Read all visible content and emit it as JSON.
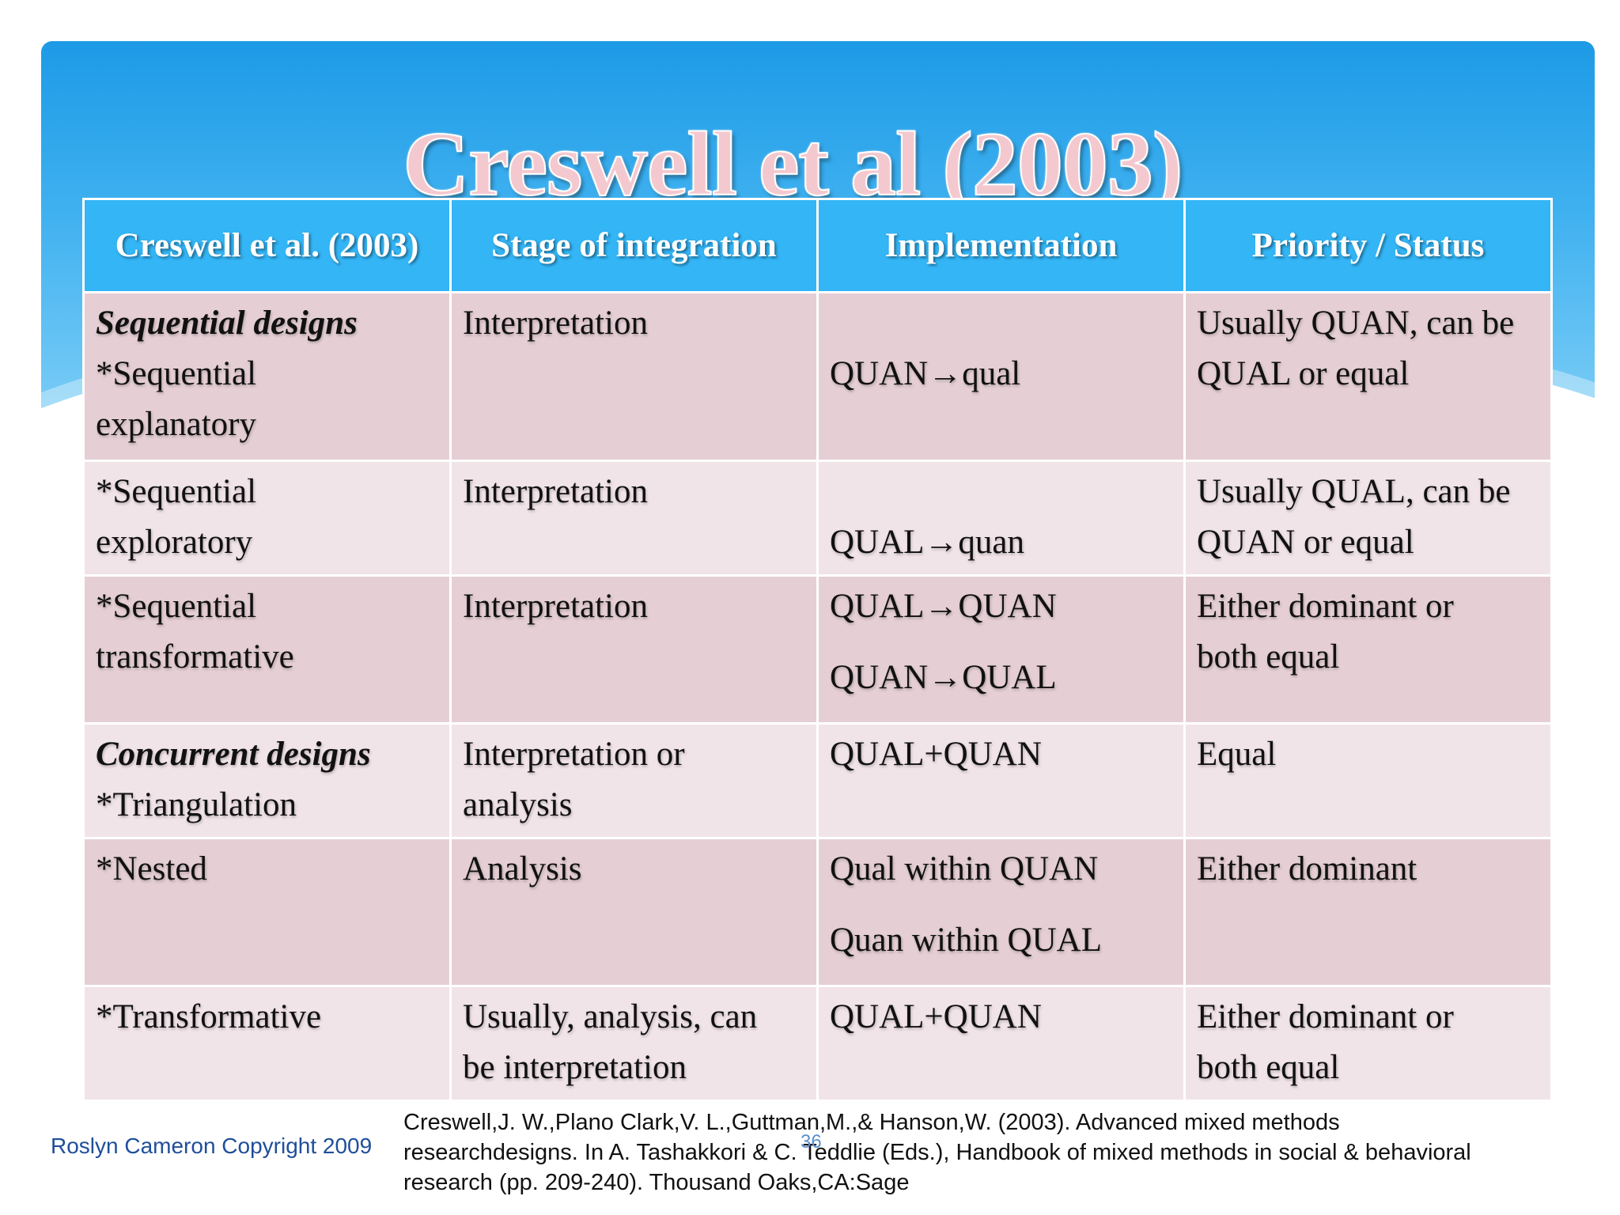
{
  "slide": {
    "title": "Creswell et al (2003)",
    "colors": {
      "banner": "#2aa7ee",
      "header_cell": "#33b5f6",
      "row_dark": "#e5cfd5",
      "row_light": "#f1e4e8",
      "title_fill": "#f3c9cf"
    }
  },
  "table": {
    "headers": [
      "Creswell et al. (2003)",
      "Stage of integration",
      "Implementation",
      "Priority / Status"
    ],
    "rows": [
      {
        "design_group": "Sequential designs",
        "design": [
          "*Sequential",
          "explanatory"
        ],
        "stage": "Interpretation",
        "implementation": [
          "QUAN→qual"
        ],
        "priority": [
          "Usually QUAN, can be",
          "QUAL or equal"
        ]
      },
      {
        "design": [
          "*Sequential",
          "exploratory"
        ],
        "stage": "Interpretation",
        "implementation": [
          "QUAL→quan"
        ],
        "priority": [
          "Usually QUAL, can be",
          "QUAN or equal"
        ]
      },
      {
        "design": [
          "*Sequential",
          "transformative"
        ],
        "stage": "Interpretation",
        "implementation": [
          "QUAL→QUAN",
          "QUAN→QUAL"
        ],
        "priority": [
          "Either dominant or",
          "both equal"
        ]
      },
      {
        "design_group": "Concurrent designs",
        "design": [
          "*Triangulation"
        ],
        "stage": [
          "Interpretation or",
          "analysis"
        ],
        "implementation": [
          "QUAL+QUAN"
        ],
        "priority": [
          "Equal"
        ]
      },
      {
        "design": [
          "*Nested"
        ],
        "stage": "Analysis",
        "implementation": [
          "Qual within QUAN",
          "Quan within QUAL"
        ],
        "priority": [
          "Either dominant"
        ]
      },
      {
        "design": [
          "*Transformative"
        ],
        "stage": [
          "Usually, analysis, can",
          "be interpretation"
        ],
        "implementation": [
          "QUAL+QUAN"
        ],
        "priority": [
          "Either dominant or",
          "both equal"
        ]
      }
    ]
  },
  "footer": {
    "copyright": "Roslyn Cameron Copyright 2009",
    "page_number": "36",
    "reference": [
      "Creswell,J. W.,Plano Clark,V. L.,Guttman,M.,& Hanson,W. (2003). Advanced mixed methods",
      "researchdesigns. In A. Tashakkori & C. Teddlie (Eds.), Handbook of mixed methods in social & behavioral",
      "research (pp. 209-240). Thousand Oaks,CA:Sage"
    ]
  }
}
